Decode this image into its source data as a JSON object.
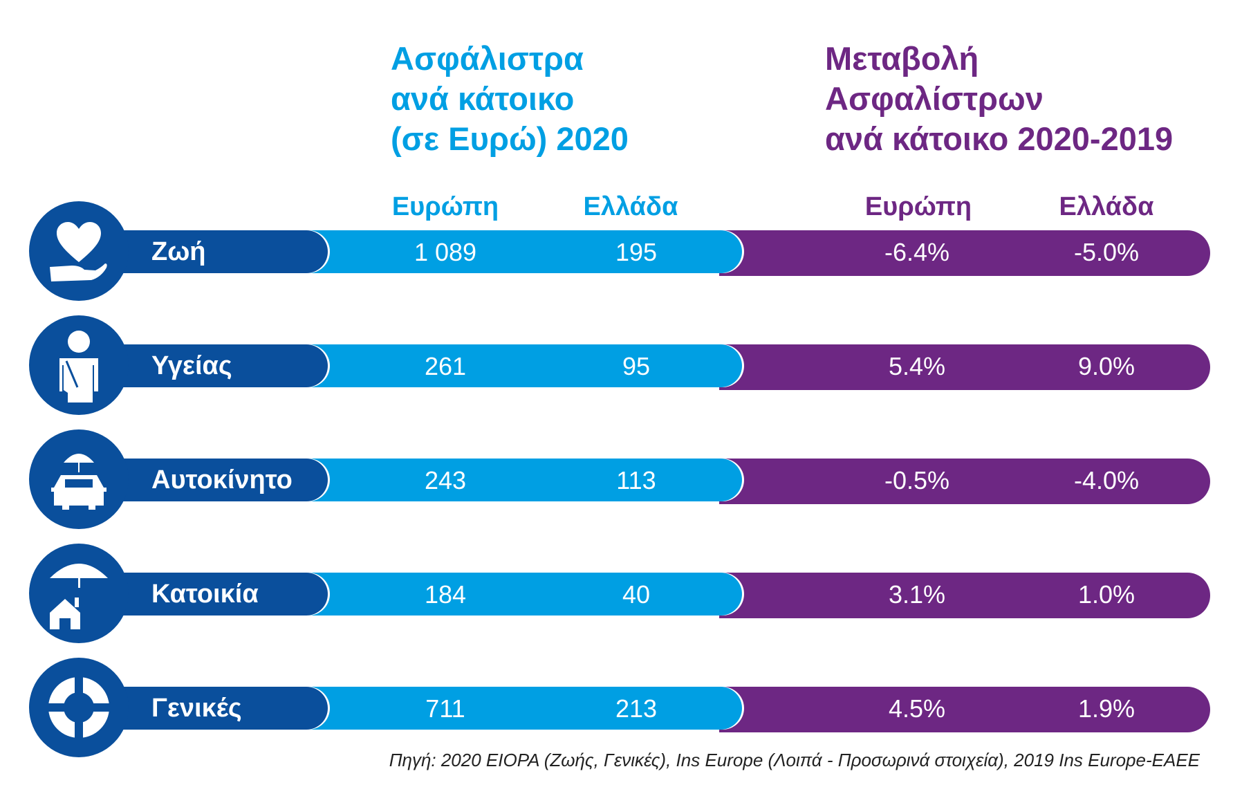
{
  "colors": {
    "dark_blue": "#0a4f9c",
    "light_blue": "#009fe3",
    "purple": "#6d2783"
  },
  "premiums": {
    "title_lines": [
      "Ασφάλιστρα",
      "ανά κάτοικο",
      "(σε Ευρώ) 2020"
    ],
    "col_europe": "Ευρώπη",
    "col_greece": "Ελλάδα"
  },
  "change": {
    "title_lines": [
      "Μεταβολή",
      "Ασφαλίστρων",
      "ανά κάτοικο 2020-2019"
    ],
    "col_europe": "Ευρώπη",
    "col_greece": "Ελλάδα"
  },
  "rows": [
    {
      "label": "Ζωή",
      "icon": "heart-hand-icon",
      "europe": "1 089",
      "greece": "195",
      "europe_change": "-6.4%",
      "greece_change": "-5.0%"
    },
    {
      "label": "Υγείας",
      "icon": "injured-person-icon",
      "europe": "261",
      "greece": "95",
      "europe_change": "5.4%",
      "greece_change": "9.0%"
    },
    {
      "label": "Αυτοκίνητο",
      "icon": "car-umbrella-icon",
      "europe": "243",
      "greece": "113",
      "europe_change": "-0.5%",
      "greece_change": "-4.0%"
    },
    {
      "label": "Κατοικία",
      "icon": "house-umbrella-icon",
      "europe": "184",
      "greece": "40",
      "europe_change": "3.1%",
      "greece_change": "1.0%"
    },
    {
      "label": "Γενικές",
      "icon": "lifebuoy-icon",
      "europe": "711",
      "greece": "213",
      "europe_change": "4.5%",
      "greece_change": "1.9%"
    }
  ],
  "source": "Πηγή: 2020 EIOPA (Ζωής, Γενικές), Ins Europe (Λοιπά - Προσωρινά στοιχεία), 2019 Ins Europe-EAEE"
}
